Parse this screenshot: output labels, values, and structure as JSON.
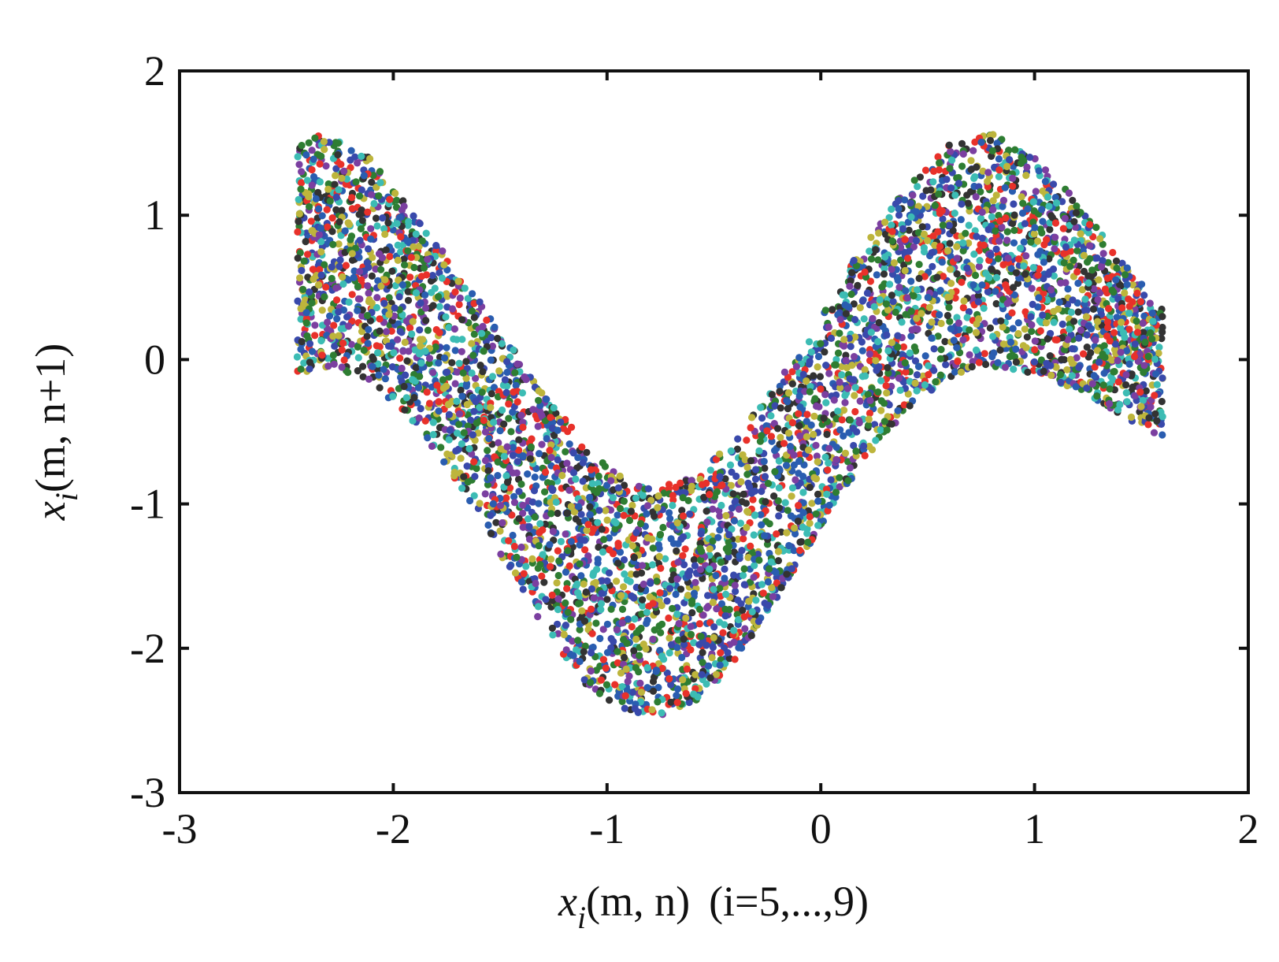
{
  "chart_data": {
    "type": "scatter",
    "title": "",
    "xlabel": {
      "var": "x",
      "sub": "i",
      "args": "(m, n)",
      "range": "(i=5,...,9)",
      "full": "x_i(m, n)  (i=5,...,9)"
    },
    "ylabel": {
      "var": "x",
      "sub": "i",
      "args": "(m, n+1)",
      "full": "x_i(m, n+1)"
    },
    "xlim": [
      -3,
      2
    ],
    "ylim": [
      -3,
      2
    ],
    "xticks": [
      -3,
      -2,
      -1,
      0,
      1,
      2
    ],
    "yticks": [
      -3,
      -2,
      -1,
      0,
      1,
      2
    ],
    "xtick_labels": [
      "-3",
      "-2",
      "-1",
      "0",
      "1",
      "2"
    ],
    "ytick_labels": [
      "-3",
      "-2",
      "-1",
      "0",
      "1",
      "2"
    ],
    "grid": false,
    "legend": "none",
    "band": {
      "x_range": [
        -2.45,
        1.6
      ],
      "lower_boundary": [
        [
          -2.45,
          -0.1
        ],
        [
          -2.3,
          -0.05
        ],
        [
          -2.1,
          -0.15
        ],
        [
          -1.9,
          -0.45
        ],
        [
          -1.7,
          -0.85
        ],
        [
          -1.5,
          -1.35
        ],
        [
          -1.3,
          -1.85
        ],
        [
          -1.1,
          -2.25
        ],
        [
          -0.9,
          -2.45
        ],
        [
          -0.75,
          -2.48
        ],
        [
          -0.6,
          -2.4
        ],
        [
          -0.4,
          -2.1
        ],
        [
          -0.2,
          -1.65
        ],
        [
          0.0,
          -1.15
        ],
        [
          0.2,
          -0.7
        ],
        [
          0.4,
          -0.35
        ],
        [
          0.6,
          -0.12
        ],
        [
          0.8,
          -0.05
        ],
        [
          1.0,
          -0.1
        ],
        [
          1.2,
          -0.22
        ],
        [
          1.4,
          -0.38
        ],
        [
          1.6,
          -0.55
        ]
      ],
      "upper_boundary": [
        [
          -2.45,
          1.52
        ],
        [
          -2.3,
          1.57
        ],
        [
          -2.1,
          1.4
        ],
        [
          -1.9,
          1.0
        ],
        [
          -1.7,
          0.62
        ],
        [
          -1.5,
          0.2
        ],
        [
          -1.3,
          -0.2
        ],
        [
          -1.1,
          -0.6
        ],
        [
          -0.9,
          -0.85
        ],
        [
          -0.75,
          -0.88
        ],
        [
          -0.6,
          -0.8
        ],
        [
          -0.4,
          -0.55
        ],
        [
          -0.2,
          -0.15
        ],
        [
          0.0,
          0.3
        ],
        [
          0.2,
          0.8
        ],
        [
          0.4,
          1.2
        ],
        [
          0.6,
          1.5
        ],
        [
          0.8,
          1.57
        ],
        [
          1.0,
          1.4
        ],
        [
          1.2,
          1.1
        ],
        [
          1.4,
          0.7
        ],
        [
          1.6,
          0.35
        ]
      ]
    },
    "series": [
      {
        "color": "#e8312a"
      },
      {
        "color": "#2e7d32"
      },
      {
        "color": "#3949ab"
      },
      {
        "color": "#bdb53c"
      },
      {
        "color": "#7b3fa0"
      },
      {
        "color": "#3cbcb4"
      },
      {
        "color": "#333333"
      },
      {
        "color": "#2a5db0"
      }
    ],
    "point_count": 5200
  }
}
